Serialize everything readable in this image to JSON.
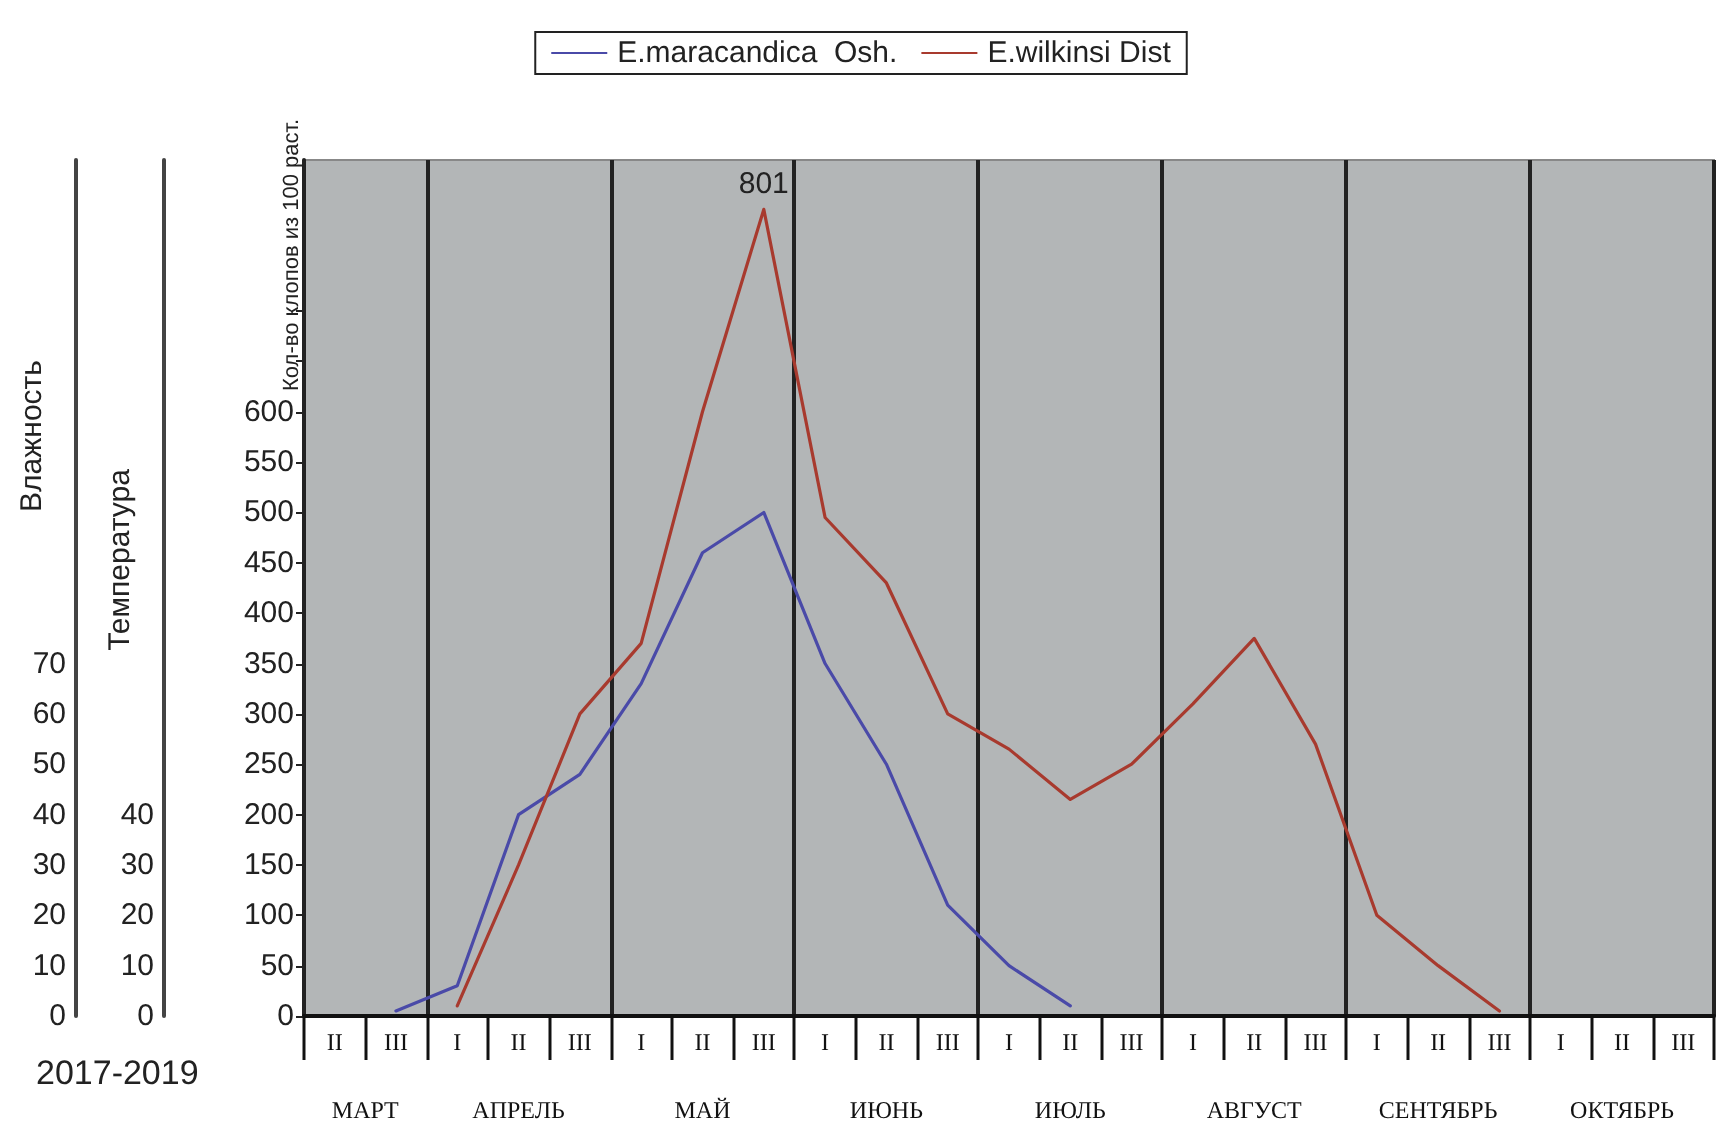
{
  "chart_data": {
    "type": "line",
    "categories": [
      "II",
      "III",
      "I",
      "II",
      "III",
      "I",
      "II",
      "III",
      "I",
      "II",
      "III",
      "I",
      "II",
      "III",
      "I",
      "II",
      "III",
      "I",
      "II",
      "III",
      "I",
      "II",
      "III"
    ],
    "series": [
      {
        "name": "E.maracandica  Osh.",
        "color": "#4a4aa8",
        "values": [
          null,
          5,
          30,
          200,
          240,
          330,
          460,
          500,
          350,
          250,
          110,
          50,
          10,
          null,
          null,
          null,
          null,
          null,
          null,
          null,
          null,
          null,
          null
        ]
      },
      {
        "name": "E.wilkinsi Dist",
        "color": "#a83a2e",
        "values": [
          null,
          null,
          10,
          150,
          300,
          370,
          600,
          801,
          495,
          430,
          300,
          265,
          215,
          250,
          310,
          375,
          270,
          100,
          50,
          5,
          null,
          null,
          null
        ],
        "value_labels": [
          null,
          null,
          null,
          null,
          null,
          null,
          null,
          "801",
          null,
          null,
          null,
          null,
          null,
          null,
          null,
          null,
          null,
          null,
          null,
          null,
          null,
          null,
          null
        ]
      }
    ],
    "ylabel": "Кол-во клопов из 100 раст.",
    "y2label": "Температура",
    "y3label": "Влажность",
    "ylim": [
      0,
      850
    ],
    "yticks": [
      0,
      50,
      100,
      150,
      200,
      250,
      300,
      350,
      400,
      450,
      500,
      550,
      600,
      {
        "value": 650,
        "label": null
      },
      {
        "value": 700,
        "label": null
      }
    ],
    "y2lim": [
      0,
      170
    ],
    "y2ticks": [
      0,
      10,
      20,
      30,
      40
    ],
    "y3lim": [
      0,
      170
    ],
    "y3ticks": [
      0,
      10,
      20,
      30,
      40,
      50,
      60,
      70
    ],
    "annotations": [
      "2017-2019",
      "МАРТ",
      "АПРЕЛЬ",
      "МАЙ",
      "ИЮНЬ",
      "ИЮЛЬ",
      "АВГУСТ",
      "СЕНТЯБРЬ",
      "ОКТЯБРЬ"
    ],
    "grid": "x",
    "legend": "top",
    "marker": "none",
    "line_style": "solid"
  }
}
